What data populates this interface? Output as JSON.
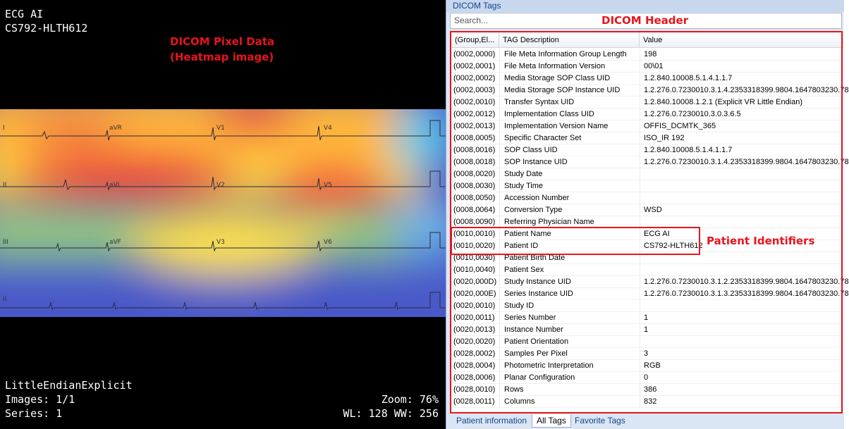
{
  "viewer": {
    "top_left": [
      "ECG AI",
      "CS792-HLTH612"
    ],
    "bottom_left": [
      "LittleEndianExplicit",
      "Images: 1/1",
      "Series: 1"
    ],
    "bottom_right": [
      "Zoom: 76%",
      "WL: 128 WW: 256"
    ],
    "annotation_pixel": [
      "DICOM Pixel Data",
      "(Heatmap image)"
    ],
    "lead_labels": [
      "I",
      "aVR",
      "V1",
      "V4",
      "II",
      "aVL",
      "V2",
      "V5",
      "III",
      "aVF",
      "V3",
      "V6",
      "II"
    ]
  },
  "panel": {
    "title": "DICOM Tags",
    "search_placeholder": "Search...",
    "annotation_header": "DICOM Header",
    "annotation_patient": "Patient Identifiers",
    "columns": [
      "(Group,El...",
      "TAG Description",
      "Value"
    ],
    "rows": [
      [
        "(0002,0000)",
        "File Meta Information Group Length",
        "198"
      ],
      [
        "(0002,0001)",
        "File Meta Information Version",
        "00\\01"
      ],
      [
        "(0002,0002)",
        "Media Storage SOP Class UID",
        "1.2.840.10008.5.1.4.1.1.7"
      ],
      [
        "(0002,0003)",
        "Media Storage SOP Instance UID",
        "1.2.276.0.7230010.3.1.4.2353318399.9804.1647803230.78"
      ],
      [
        "(0002,0010)",
        "Transfer Syntax UID",
        "1.2.840.10008.1.2.1 (Explicit VR Little Endian)"
      ],
      [
        "(0002,0012)",
        "Implementation Class UID",
        "1.2.276.0.7230010.3.0.3.6.5"
      ],
      [
        "(0002,0013)",
        "Implementation Version Name",
        "OFFIS_DCMTK_365"
      ],
      [
        "(0008,0005)",
        "Specific Character Set",
        "ISO_IR 192"
      ],
      [
        "(0008,0016)",
        "SOP Class UID",
        "1.2.840.10008.5.1.4.1.1.7"
      ],
      [
        "(0008,0018)",
        "SOP Instance UID",
        "1.2.276.0.7230010.3.1.4.2353318399.9804.1647803230.78"
      ],
      [
        "(0008,0020)",
        "Study Date",
        ""
      ],
      [
        "(0008,0030)",
        "Study Time",
        ""
      ],
      [
        "(0008,0050)",
        "Accession Number",
        ""
      ],
      [
        "(0008,0064)",
        "Conversion Type",
        "WSD"
      ],
      [
        "(0008,0090)",
        "Referring Physician Name",
        ""
      ],
      [
        "(0010,0010)",
        "Patient Name",
        "ECG AI"
      ],
      [
        "(0010,0020)",
        "Patient ID",
        "CS792-HLTH612"
      ],
      [
        "(0010,0030)",
        "Patient Birth Date",
        ""
      ],
      [
        "(0010,0040)",
        "Patient Sex",
        ""
      ],
      [
        "(0020,000D)",
        "Study Instance UID",
        "1.2.276.0.7230010.3.1.2.2353318399.9804.1647803230.78"
      ],
      [
        "(0020,000E)",
        "Series Instance UID",
        "1.2.276.0.7230010.3.1.3.2353318399.9804.1647803230.78"
      ],
      [
        "(0020,0010)",
        "Study ID",
        ""
      ],
      [
        "(0020,0011)",
        "Series Number",
        "1"
      ],
      [
        "(0020,0013)",
        "Instance Number",
        "1"
      ],
      [
        "(0020,0020)",
        "Patient Orientation",
        ""
      ],
      [
        "(0028,0002)",
        "Samples Per Pixel",
        "3"
      ],
      [
        "(0028,0004)",
        "Photometric Interpretation",
        "RGB"
      ],
      [
        "(0028,0006)",
        "Planar Configuration",
        "0"
      ],
      [
        "(0028,0010)",
        "Rows",
        "386"
      ],
      [
        "(0028,0011)",
        "Columns",
        "832"
      ]
    ],
    "tabs": [
      "Patient information",
      "All Tags",
      "Favorite Tags"
    ],
    "active_tab": "All Tags"
  }
}
